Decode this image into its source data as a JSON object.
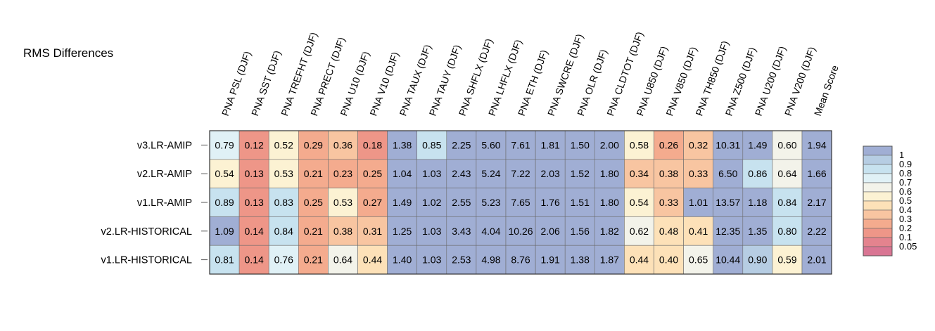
{
  "chart_data": {
    "type": "heatmap",
    "title": "RMS Differences",
    "columns": [
      "PNA PSL (DJF)",
      "PNA SST (DJF)",
      "PNA TREFHT (DJF)",
      "PNA PRECT (DJF)",
      "PNA U10 (DJF)",
      "PNA V10 (DJF)",
      "PNA TAUX (DJF)",
      "PNA TAUY (DJF)",
      "PNA SHFLX (DJF)",
      "PNA LHFLX (DJF)",
      "PNA ETH (DJF)",
      "PNA SWCRE (DJF)",
      "PNA OLR (DJF)",
      "PNA CLDTOT (DJF)",
      "PNA U850 (DJF)",
      "PNA V850 (DJF)",
      "PNA TH850 (DJF)",
      "PNA Z500 (DJF)",
      "PNA U200 (DJF)",
      "PNA V200 (DJF)",
      "Mean Score"
    ],
    "rows": [
      "v3.LR-AMIP",
      "v2.LR-AMIP",
      "v1.LR-AMIP",
      "v2.LR-HISTORICAL",
      "v1.LR-HISTORICAL"
    ],
    "values": [
      [
        0.79,
        0.12,
        0.52,
        0.29,
        0.36,
        0.18,
        1.38,
        0.85,
        2.25,
        5.6,
        7.61,
        1.81,
        1.5,
        2.0,
        0.58,
        0.26,
        0.32,
        10.31,
        1.49,
        0.6,
        1.94
      ],
      [
        0.54,
        0.13,
        0.53,
        0.21,
        0.23,
        0.25,
        1.04,
        1.03,
        2.43,
        5.24,
        7.22,
        2.03,
        1.52,
        1.8,
        0.34,
        0.38,
        0.33,
        6.5,
        0.86,
        0.64,
        1.66
      ],
      [
        0.89,
        0.13,
        0.83,
        0.25,
        0.53,
        0.27,
        1.49,
        1.02,
        2.55,
        5.23,
        7.65,
        1.76,
        1.51,
        1.8,
        0.54,
        0.33,
        1.01,
        13.57,
        1.18,
        0.84,
        2.17
      ],
      [
        1.09,
        0.14,
        0.84,
        0.21,
        0.38,
        0.31,
        1.25,
        1.03,
        3.43,
        4.04,
        10.26,
        2.06,
        1.56,
        1.82,
        0.62,
        0.48,
        0.41,
        12.35,
        1.35,
        0.8,
        2.22
      ],
      [
        0.81,
        0.14,
        0.76,
        0.21,
        0.64,
        0.44,
        1.4,
        1.03,
        2.53,
        4.98,
        8.76,
        1.91,
        1.38,
        1.87,
        0.44,
        0.4,
        0.65,
        10.44,
        0.9,
        0.59,
        2.01
      ]
    ],
    "labels": [
      [
        "0.79",
        "0.12",
        "0.52",
        "0.29",
        "0.36",
        "0.18",
        "1.38",
        "0.85",
        "2.25",
        "5.60",
        "7.61",
        "1.81",
        "1.50",
        "2.00",
        "0.58",
        "0.26",
        "0.32",
        "10.31",
        "1.49",
        "0.60",
        "1.94"
      ],
      [
        "0.54",
        "0.13",
        "0.53",
        "0.21",
        "0.23",
        "0.25",
        "1.04",
        "1.03",
        "2.43",
        "5.24",
        "7.22",
        "2.03",
        "1.52",
        "1.80",
        "0.34",
        "0.38",
        "0.33",
        "6.50",
        "0.86",
        "0.64",
        "1.66"
      ],
      [
        "0.89",
        "0.13",
        "0.83",
        "0.25",
        "0.53",
        "0.27",
        "1.49",
        "1.02",
        "2.55",
        "5.23",
        "7.65",
        "1.76",
        "1.51",
        "1.80",
        "0.54",
        "0.33",
        "1.01",
        "13.57",
        "1.18",
        "0.84",
        "2.17"
      ],
      [
        "1.09",
        "0.14",
        "0.84",
        "0.21",
        "0.38",
        "0.31",
        "1.25",
        "1.03",
        "3.43",
        "4.04",
        "10.26",
        "2.06",
        "1.56",
        "1.82",
        "0.62",
        "0.48",
        "0.41",
        "12.35",
        "1.35",
        "0.80",
        "2.22"
      ],
      [
        "0.81",
        "0.14",
        "0.76",
        "0.21",
        "0.64",
        "0.44",
        "1.40",
        "1.03",
        "2.53",
        "4.98",
        "8.76",
        "1.91",
        "1.38",
        "1.87",
        "0.44",
        "0.40",
        "0.65",
        "10.44",
        "0.90",
        "0.59",
        "2.01"
      ]
    ],
    "colorbar": {
      "labels": [
        "1",
        "0.9",
        "0.8",
        "0.7",
        "0.6",
        "0.5",
        "0.4",
        "0.3",
        "0.2",
        "0.1",
        "0.05"
      ],
      "levels": [
        1.1,
        1,
        0.9,
        0.8,
        0.7,
        0.6,
        0.5,
        0.4,
        0.3,
        0.2,
        0.1,
        0.05,
        0
      ],
      "colors": [
        "#a0aed4",
        "#b6cde3",
        "#c7e2ef",
        "#e0f1f6",
        "#f3f3ea",
        "#fcf2d3",
        "#fde1b8",
        "#f8c5a1",
        "#f4ab8e",
        "#ee9688",
        "#e4838e",
        "#d97593"
      ]
    }
  }
}
